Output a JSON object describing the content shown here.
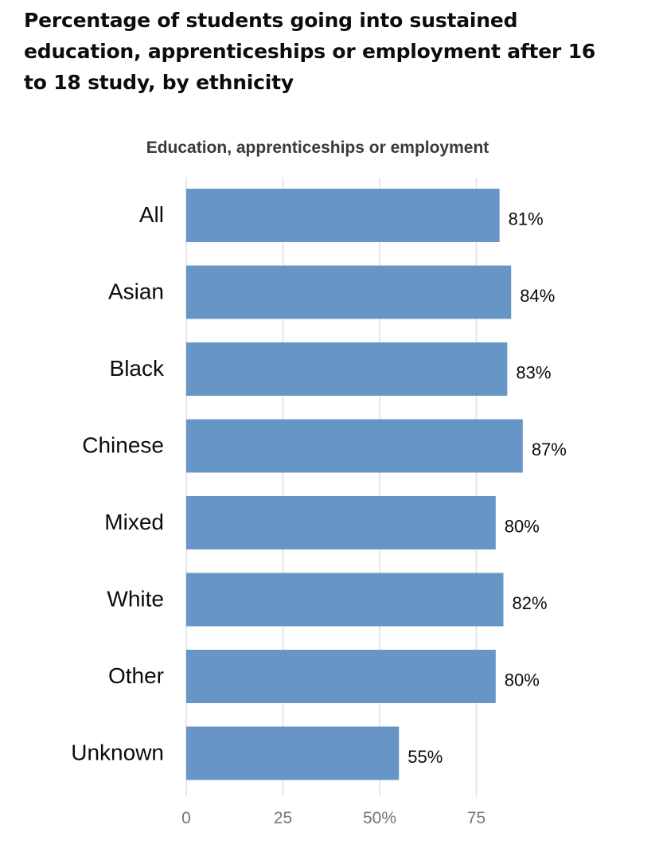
{
  "title": "Percentage of students going into sustained education, apprenticeships or employment after 16 to 18 study, by ethnicity",
  "colors": {
    "bar": "#6695c6",
    "grid": "#e6e6e6",
    "label_text": "#0b0c0c",
    "tick_text": "#757575",
    "subtitle_text": "#3a3a3a"
  },
  "chart_data": {
    "type": "bar",
    "orientation": "horizontal",
    "subtitle": "Education, apprenticeships or employment",
    "categories": [
      "All",
      "Asian",
      "Black",
      "Chinese",
      "Mixed",
      "White",
      "Other",
      "Unknown"
    ],
    "values": [
      81,
      84,
      83,
      87,
      80,
      82,
      80,
      55
    ],
    "data_labels": [
      "81%",
      "84%",
      "83%",
      "87%",
      "80%",
      "82%",
      "80%",
      "55%"
    ],
    "xticks": [
      0,
      25,
      50,
      75
    ],
    "xtick_labels": [
      "0",
      "25",
      "50%",
      "75"
    ],
    "xlim": [
      0,
      100
    ],
    "grid": true,
    "legend": false
  }
}
